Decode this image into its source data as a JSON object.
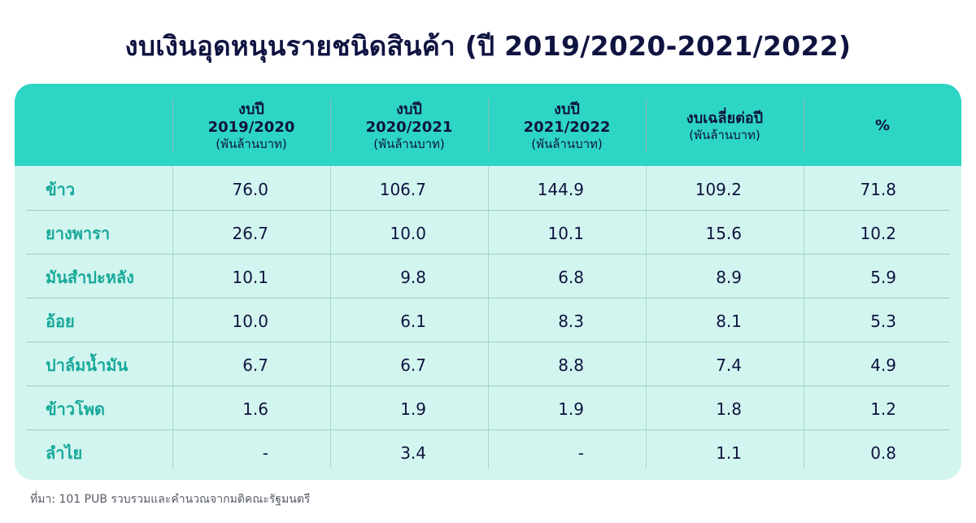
{
  "title": "งบเงินอุดหนุนรายชนิดสินค้า (ปี 2019/2020-2021/2022)",
  "header": {
    "columns": [
      {
        "line1": "งบปี",
        "line2": "2019/2020",
        "unit": "(พันล้านบาท)"
      },
      {
        "line1": "งบปี",
        "line2": "2020/2021",
        "unit": "(พันล้านบาท)"
      },
      {
        "line1": "งบปี",
        "line2": "2021/2022",
        "unit": "(พันล้านบาท)"
      },
      {
        "line1": "งบเฉลี่ยต่อปี",
        "line2": "",
        "unit": "(พันล้านบาท)"
      },
      {
        "line1": "%",
        "line2": "",
        "unit": ""
      }
    ]
  },
  "rows": [
    {
      "label": "ข้าว",
      "values": [
        "76.0",
        "106.7",
        "144.9",
        "109.2",
        "71.8"
      ]
    },
    {
      "label": "ยางพารา",
      "values": [
        "26.7",
        "10.0",
        "10.1",
        "15.6",
        "10.2"
      ]
    },
    {
      "label": "มันสำปะหลัง",
      "values": [
        "10.1",
        "9.8",
        "6.8",
        "8.9",
        "5.9"
      ]
    },
    {
      "label": "อ้อย",
      "values": [
        "10.0",
        "6.1",
        "8.3",
        "8.1",
        "5.3"
      ]
    },
    {
      "label": "ปาล์มน้ำมัน",
      "values": [
        "6.7",
        "6.7",
        "8.8",
        "7.4",
        "4.9"
      ]
    },
    {
      "label": "ข้าวโพด",
      "values": [
        "1.6",
        "1.9",
        "1.9",
        "1.8",
        "1.2"
      ]
    },
    {
      "label": "ลำไย",
      "values": [
        "-",
        "3.4",
        "-",
        "1.1",
        "0.8"
      ]
    }
  ],
  "source": "ที่มา: 101 PUB รวบรวมและคำนวณจากมติคณะรัฐมนตรี",
  "colors": {
    "header_bg": "#2dd5c4",
    "body_bg": "#d3f5ef",
    "label": "#16a99b",
    "title": "#0f1340"
  }
}
